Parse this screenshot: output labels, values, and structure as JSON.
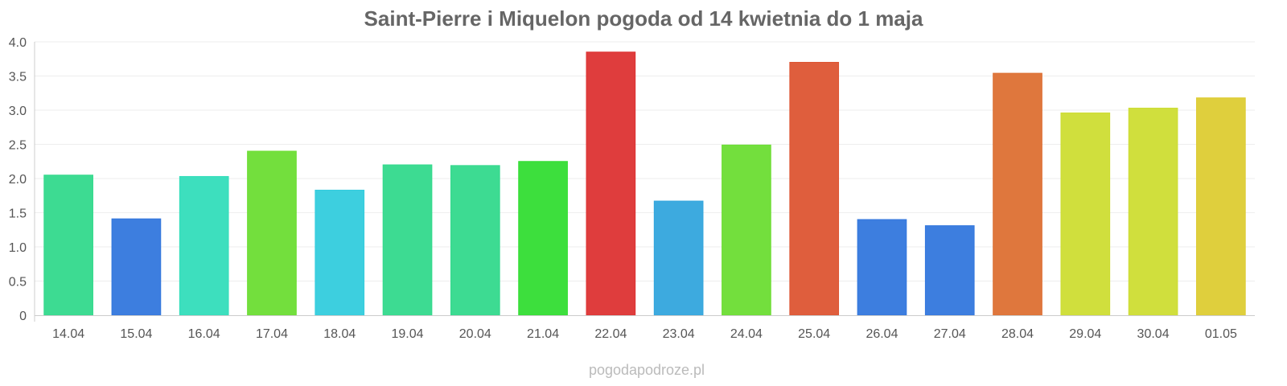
{
  "chart_data": {
    "type": "bar",
    "title": "Saint-Pierre i Miquelon pogoda od 14 kwietnia do 1 maja",
    "xlabel": "",
    "ylabel": "",
    "ylim": [
      0,
      4.0
    ],
    "yticks": [
      "0",
      "0.5",
      "1.0",
      "1.5",
      "2.0",
      "2.5",
      "3.0",
      "3.5",
      "4.0"
    ],
    "grid": true,
    "legend": "none",
    "categories": [
      "14.04",
      "15.04",
      "16.04",
      "17.04",
      "18.04",
      "19.04",
      "20.04",
      "21.04",
      "22.04",
      "23.04",
      "24.04",
      "25.04",
      "26.04",
      "27.04",
      "28.04",
      "29.04",
      "30.04",
      "01.05"
    ],
    "values": [
      2.05,
      1.41,
      2.03,
      2.4,
      1.83,
      2.2,
      2.19,
      2.25,
      3.85,
      1.67,
      2.49,
      3.7,
      1.4,
      1.31,
      3.54,
      2.96,
      3.03,
      3.18
    ],
    "colors": [
      "#33d98c",
      "#3377dd",
      "#33ddbb",
      "#6cdd33",
      "#33ccdd",
      "#33d98c",
      "#33d98c",
      "#33dd33",
      "#dd3333",
      "#33a5dd",
      "#6cdd33",
      "#dd5533",
      "#3377dd",
      "#3377dd",
      "#dd7033",
      "#cddd33",
      "#cddd33",
      "#ddcc33"
    ]
  },
  "watermark": "pogodapodroze.pl"
}
